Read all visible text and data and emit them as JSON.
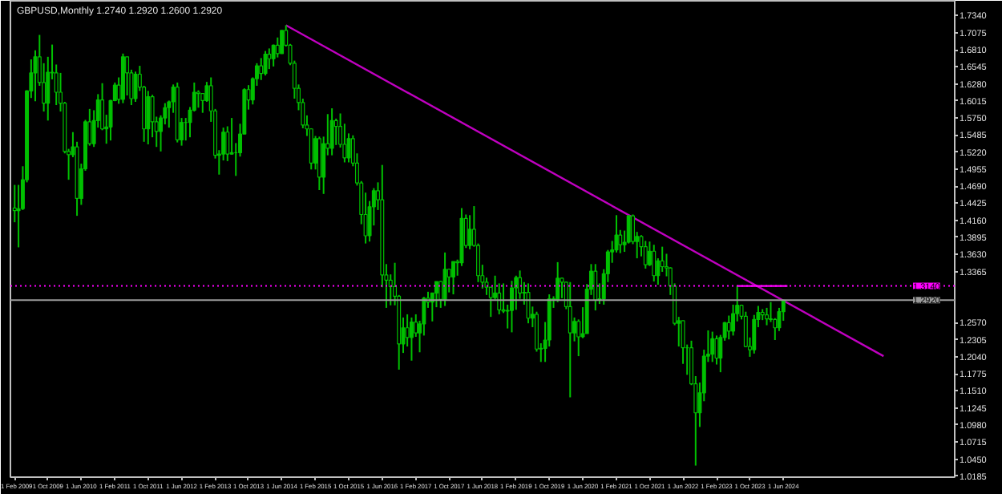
{
  "chart_data": {
    "type": "candlestick",
    "title": "GBPUSD,Monthly 1.2740 1.2920 1.2600 1.2920",
    "x": [
      "2009-02",
      "2009-03",
      "2009-04",
      "2009-05",
      "2009-06",
      "2009-07",
      "2009-08",
      "2009-09",
      "2009-10",
      "2009-11",
      "2009-12",
      "2010-01",
      "2010-02",
      "2010-03",
      "2010-04",
      "2010-05",
      "2010-06",
      "2010-07",
      "2010-08",
      "2010-09",
      "2010-10",
      "2010-11",
      "2010-12",
      "2011-01",
      "2011-02",
      "2011-03",
      "2011-04",
      "2011-05",
      "2011-06",
      "2011-07",
      "2011-08",
      "2011-09",
      "2011-10",
      "2011-11",
      "2011-12",
      "2012-01",
      "2012-02",
      "2012-03",
      "2012-04",
      "2012-05",
      "2012-06",
      "2012-07",
      "2012-08",
      "2012-09",
      "2012-10",
      "2012-11",
      "2012-12",
      "2013-01",
      "2013-02",
      "2013-03",
      "2013-04",
      "2013-05",
      "2013-06",
      "2013-07",
      "2013-08",
      "2013-09",
      "2013-10",
      "2013-11",
      "2013-12",
      "2014-01",
      "2014-02",
      "2014-03",
      "2014-04",
      "2014-05",
      "2014-06",
      "2014-07",
      "2014-08",
      "2014-09",
      "2014-10",
      "2014-11",
      "2014-12",
      "2015-01",
      "2015-02",
      "2015-03",
      "2015-04",
      "2015-05",
      "2015-06",
      "2015-07",
      "2015-08",
      "2015-09",
      "2015-10",
      "2015-11",
      "2015-12",
      "2016-01",
      "2016-02",
      "2016-03",
      "2016-04",
      "2016-05",
      "2016-06",
      "2016-07",
      "2016-08",
      "2016-09",
      "2016-10",
      "2016-11",
      "2016-12",
      "2017-01",
      "2017-02",
      "2017-03",
      "2017-04",
      "2017-05",
      "2017-06",
      "2017-07",
      "2017-08",
      "2017-09",
      "2017-10",
      "2017-11",
      "2017-12",
      "2018-01",
      "2018-02",
      "2018-03",
      "2018-04",
      "2018-05",
      "2018-06",
      "2018-07",
      "2018-08",
      "2018-09",
      "2018-10",
      "2018-11",
      "2018-12",
      "2019-01",
      "2019-02",
      "2019-03",
      "2019-04",
      "2019-05",
      "2019-06",
      "2019-07",
      "2019-08",
      "2019-09",
      "2019-10",
      "2019-11",
      "2019-12",
      "2020-01",
      "2020-02",
      "2020-03",
      "2020-04",
      "2020-05",
      "2020-06",
      "2020-07",
      "2020-08",
      "2020-09",
      "2020-10",
      "2020-11",
      "2020-12",
      "2021-01",
      "2021-02",
      "2021-03",
      "2021-04",
      "2021-05",
      "2021-06",
      "2021-07",
      "2021-08",
      "2021-09",
      "2021-10",
      "2021-11",
      "2021-12",
      "2022-01",
      "2022-02",
      "2022-03",
      "2022-04",
      "2022-05",
      "2022-06",
      "2022-07",
      "2022-08",
      "2022-09",
      "2022-10",
      "2022-11",
      "2022-12",
      "2023-01",
      "2023-02",
      "2023-03",
      "2023-04",
      "2023-05",
      "2023-06",
      "2023-07",
      "2023-08",
      "2023-09",
      "2023-10",
      "2023-11",
      "2023-12",
      "2024-01",
      "2024-02",
      "2024-03",
      "2024-04",
      "2024-05",
      "2024-06"
    ],
    "ohlc": [
      [
        1.435,
        1.471,
        1.413,
        1.431
      ],
      [
        1.431,
        1.471,
        1.374,
        1.434
      ],
      [
        1.434,
        1.5,
        1.432,
        1.479
      ],
      [
        1.479,
        1.618,
        1.475,
        1.617
      ],
      [
        1.617,
        1.666,
        1.606,
        1.645
      ],
      [
        1.645,
        1.68,
        1.601,
        1.67
      ],
      [
        1.67,
        1.704,
        1.625,
        1.63
      ],
      [
        1.63,
        1.66,
        1.585,
        1.598
      ],
      [
        1.598,
        1.67,
        1.571,
        1.646
      ],
      [
        1.646,
        1.689,
        1.635,
        1.645
      ],
      [
        1.645,
        1.658,
        1.595,
        1.615
      ],
      [
        1.615,
        1.645,
        1.585,
        1.598
      ],
      [
        1.598,
        1.6,
        1.52,
        1.523
      ],
      [
        1.523,
        1.527,
        1.479,
        1.518
      ],
      [
        1.518,
        1.553,
        1.514,
        1.53
      ],
      [
        1.53,
        1.538,
        1.423,
        1.45
      ],
      [
        1.45,
        1.504,
        1.44,
        1.496
      ],
      [
        1.496,
        1.572,
        1.493,
        1.569
      ],
      [
        1.569,
        1.589,
        1.532,
        1.535
      ],
      [
        1.535,
        1.587,
        1.53,
        1.571
      ],
      [
        1.571,
        1.612,
        1.56,
        1.603
      ],
      [
        1.603,
        1.629,
        1.556,
        1.558
      ],
      [
        1.558,
        1.58,
        1.535,
        1.561
      ],
      [
        1.561,
        1.603,
        1.54,
        1.602
      ],
      [
        1.602,
        1.63,
        1.601,
        1.626
      ],
      [
        1.626,
        1.638,
        1.597,
        1.604
      ],
      [
        1.604,
        1.675,
        1.598,
        1.67
      ],
      [
        1.67,
        1.67,
        1.61,
        1.645
      ],
      [
        1.645,
        1.65,
        1.595,
        1.605
      ],
      [
        1.605,
        1.647,
        1.6,
        1.643
      ],
      [
        1.643,
        1.656,
        1.617,
        1.623
      ],
      [
        1.623,
        1.625,
        1.538,
        1.558
      ],
      [
        1.558,
        1.617,
        1.534,
        1.608
      ],
      [
        1.608,
        1.611,
        1.545,
        1.569
      ],
      [
        1.569,
        1.577,
        1.53,
        1.554
      ],
      [
        1.554,
        1.579,
        1.523,
        1.575
      ],
      [
        1.575,
        1.598,
        1.565,
        1.591
      ],
      [
        1.591,
        1.602,
        1.56,
        1.6
      ],
      [
        1.6,
        1.627,
        1.583,
        1.623
      ],
      [
        1.623,
        1.63,
        1.537,
        1.541
      ],
      [
        1.541,
        1.575,
        1.532,
        1.568
      ],
      [
        1.568,
        1.575,
        1.54,
        1.568
      ],
      [
        1.568,
        1.592,
        1.545,
        1.587
      ],
      [
        1.587,
        1.63,
        1.585,
        1.615
      ],
      [
        1.615,
        1.618,
        1.591,
        1.613
      ],
      [
        1.613,
        1.613,
        1.583,
        1.602
      ],
      [
        1.602,
        1.631,
        1.6,
        1.625
      ],
      [
        1.625,
        1.638,
        1.569,
        1.586
      ],
      [
        1.586,
        1.589,
        1.512,
        1.517
      ],
      [
        1.517,
        1.525,
        1.487,
        1.519
      ],
      [
        1.519,
        1.56,
        1.509,
        1.553
      ],
      [
        1.553,
        1.562,
        1.508,
        1.519
      ],
      [
        1.519,
        1.575,
        1.518,
        1.521
      ],
      [
        1.521,
        1.536,
        1.485,
        1.521
      ],
      [
        1.521,
        1.566,
        1.515,
        1.55
      ],
      [
        1.55,
        1.621,
        1.55,
        1.619
      ],
      [
        1.619,
        1.626,
        1.588,
        1.603
      ],
      [
        1.603,
        1.638,
        1.596,
        1.636
      ],
      [
        1.636,
        1.66,
        1.625,
        1.656
      ],
      [
        1.656,
        1.668,
        1.634,
        1.644
      ],
      [
        1.644,
        1.679,
        1.641,
        1.674
      ],
      [
        1.674,
        1.683,
        1.651,
        1.667
      ],
      [
        1.667,
        1.689,
        1.655,
        1.688
      ],
      [
        1.688,
        1.7,
        1.669,
        1.675
      ],
      [
        1.675,
        1.711,
        1.675,
        1.711
      ],
      [
        1.711,
        1.719,
        1.686,
        1.688
      ],
      [
        1.688,
        1.69,
        1.657,
        1.66
      ],
      [
        1.66,
        1.664,
        1.605,
        1.621
      ],
      [
        1.621,
        1.627,
        1.587,
        1.599
      ],
      [
        1.599,
        1.605,
        1.559,
        1.564
      ],
      [
        1.564,
        1.579,
        1.547,
        1.558
      ],
      [
        1.558,
        1.559,
        1.495,
        1.505
      ],
      [
        1.505,
        1.547,
        1.495,
        1.543
      ],
      [
        1.543,
        1.546,
        1.463,
        1.483
      ],
      [
        1.483,
        1.546,
        1.457,
        1.535
      ],
      [
        1.535,
        1.581,
        1.517,
        1.528
      ],
      [
        1.528,
        1.59,
        1.517,
        1.571
      ],
      [
        1.571,
        1.574,
        1.533,
        1.562
      ],
      [
        1.562,
        1.582,
        1.529,
        1.534
      ],
      [
        1.534,
        1.566,
        1.506,
        1.513
      ],
      [
        1.513,
        1.551,
        1.506,
        1.543
      ],
      [
        1.543,
        1.548,
        1.5,
        1.505
      ],
      [
        1.505,
        1.52,
        1.47,
        1.474
      ],
      [
        1.474,
        1.477,
        1.41,
        1.425
      ],
      [
        1.425,
        1.459,
        1.38,
        1.392
      ],
      [
        1.392,
        1.446,
        1.383,
        1.437
      ],
      [
        1.437,
        1.466,
        1.408,
        1.462
      ],
      [
        1.462,
        1.475,
        1.432,
        1.448
      ],
      [
        1.448,
        1.502,
        1.312,
        1.331
      ],
      [
        1.331,
        1.348,
        1.28,
        1.323
      ],
      [
        1.323,
        1.332,
        1.284,
        1.313
      ],
      [
        1.313,
        1.35,
        1.284,
        1.298
      ],
      [
        1.298,
        1.3,
        1.184,
        1.224
      ],
      [
        1.224,
        1.265,
        1.21,
        1.249
      ],
      [
        1.249,
        1.27,
        1.22,
        1.234
      ],
      [
        1.234,
        1.265,
        1.198,
        1.258
      ],
      [
        1.258,
        1.27,
        1.235,
        1.241
      ],
      [
        1.241,
        1.26,
        1.211,
        1.255
      ],
      [
        1.255,
        1.297,
        1.237,
        1.295
      ],
      [
        1.295,
        1.305,
        1.28,
        1.289
      ],
      [
        1.289,
        1.303,
        1.259,
        1.303
      ],
      [
        1.303,
        1.321,
        1.281,
        1.321
      ],
      [
        1.321,
        1.322,
        1.28,
        1.293
      ],
      [
        1.293,
        1.366,
        1.283,
        1.34
      ],
      [
        1.34,
        1.341,
        1.304,
        1.328
      ],
      [
        1.328,
        1.352,
        1.301,
        1.352
      ],
      [
        1.352,
        1.355,
        1.33,
        1.35
      ],
      [
        1.35,
        1.435,
        1.345,
        1.419
      ],
      [
        1.419,
        1.425,
        1.373,
        1.377
      ],
      [
        1.377,
        1.424,
        1.371,
        1.402
      ],
      [
        1.402,
        1.438,
        1.375,
        1.377
      ],
      [
        1.377,
        1.38,
        1.32,
        1.33
      ],
      [
        1.33,
        1.347,
        1.31,
        1.32
      ],
      [
        1.32,
        1.327,
        1.3,
        1.312
      ],
      [
        1.312,
        1.312,
        1.266,
        1.296
      ],
      [
        1.296,
        1.33,
        1.293,
        1.303
      ],
      [
        1.303,
        1.318,
        1.27,
        1.277
      ],
      [
        1.277,
        1.318,
        1.272,
        1.275
      ],
      [
        1.275,
        1.285,
        1.248,
        1.276
      ],
      [
        1.276,
        1.322,
        1.242,
        1.311
      ],
      [
        1.311,
        1.33,
        1.277,
        1.327
      ],
      [
        1.327,
        1.338,
        1.294,
        1.303
      ],
      [
        1.303,
        1.32,
        1.285,
        1.304
      ],
      [
        1.304,
        1.318,
        1.256,
        1.264
      ],
      [
        1.264,
        1.282,
        1.25,
        1.27
      ],
      [
        1.27,
        1.274,
        1.212,
        1.216
      ],
      [
        1.216,
        1.225,
        1.196,
        1.217
      ],
      [
        1.217,
        1.258,
        1.196,
        1.23
      ],
      [
        1.23,
        1.301,
        1.22,
        1.294
      ],
      [
        1.294,
        1.298,
        1.28,
        1.293
      ],
      [
        1.293,
        1.351,
        1.289,
        1.326
      ],
      [
        1.326,
        1.327,
        1.295,
        1.32
      ],
      [
        1.32,
        1.321,
        1.278,
        1.282
      ],
      [
        1.282,
        1.32,
        1.141,
        1.241
      ],
      [
        1.241,
        1.265,
        1.228,
        1.259
      ],
      [
        1.259,
        1.262,
        1.205,
        1.235
      ],
      [
        1.235,
        1.281,
        1.233,
        1.24
      ],
      [
        1.24,
        1.317,
        1.24,
        1.309
      ],
      [
        1.309,
        1.348,
        1.3,
        1.337
      ],
      [
        1.337,
        1.348,
        1.276,
        1.292
      ],
      [
        1.292,
        1.318,
        1.286,
        1.294
      ],
      [
        1.294,
        1.34,
        1.285,
        1.333
      ],
      [
        1.333,
        1.37,
        1.32,
        1.367
      ],
      [
        1.367,
        1.384,
        1.35,
        1.37
      ],
      [
        1.37,
        1.424,
        1.366,
        1.393
      ],
      [
        1.393,
        1.401,
        1.365,
        1.378
      ],
      [
        1.378,
        1.4,
        1.367,
        1.382
      ],
      [
        1.382,
        1.424,
        1.38,
        1.423
      ],
      [
        1.423,
        1.425,
        1.379,
        1.383
      ],
      [
        1.383,
        1.398,
        1.357,
        1.391
      ],
      [
        1.391,
        1.393,
        1.36,
        1.375
      ],
      [
        1.375,
        1.384,
        1.341,
        1.347
      ],
      [
        1.347,
        1.383,
        1.345,
        1.368
      ],
      [
        1.368,
        1.378,
        1.321,
        1.33
      ],
      [
        1.33,
        1.357,
        1.316,
        1.353
      ],
      [
        1.353,
        1.375,
        1.336,
        1.344
      ],
      [
        1.344,
        1.364,
        1.329,
        1.342
      ],
      [
        1.342,
        1.343,
        1.3,
        1.314
      ],
      [
        1.314,
        1.318,
        1.253,
        1.256
      ],
      [
        1.256,
        1.266,
        1.22,
        1.26
      ],
      [
        1.26,
        1.26,
        1.193,
        1.218
      ],
      [
        1.218,
        1.223,
        1.176,
        1.218
      ],
      [
        1.218,
        1.229,
        1.16,
        1.162
      ],
      [
        1.162,
        1.174,
        1.035,
        1.117
      ],
      [
        1.117,
        1.164,
        1.095,
        1.148
      ],
      [
        1.148,
        1.215,
        1.135,
        1.205
      ],
      [
        1.205,
        1.245,
        1.196,
        1.208
      ],
      [
        1.208,
        1.243,
        1.196,
        1.232
      ],
      [
        1.232,
        1.237,
        1.192,
        1.202
      ],
      [
        1.202,
        1.238,
        1.18,
        1.234
      ],
      [
        1.234,
        1.258,
        1.229,
        1.257
      ],
      [
        1.257,
        1.268,
        1.231,
        1.244
      ],
      [
        1.244,
        1.285,
        1.237,
        1.271
      ],
      [
        1.271,
        1.314,
        1.259,
        1.284
      ],
      [
        1.284,
        1.285,
        1.262,
        1.267
      ],
      [
        1.267,
        1.274,
        1.219,
        1.22
      ],
      [
        1.22,
        1.234,
        1.204,
        1.215
      ],
      [
        1.215,
        1.269,
        1.209,
        1.262
      ],
      [
        1.262,
        1.283,
        1.25,
        1.273
      ],
      [
        1.273,
        1.278,
        1.261,
        1.269
      ],
      [
        1.269,
        1.28,
        1.253,
        1.263
      ],
      [
        1.263,
        1.289,
        1.258,
        1.262
      ],
      [
        1.262,
        1.264,
        1.23,
        1.249
      ],
      [
        1.249,
        1.28,
        1.244,
        1.274
      ],
      [
        1.274,
        1.292,
        1.26,
        1.292
      ]
    ],
    "color": "#00c000",
    "series": [
      {
        "type": "line",
        "x": [
          "2014-07",
          "2026-06"
        ],
        "values": [
          1.719,
          1.205
        ],
        "color": "#c000c0"
      },
      {
        "type": "line",
        "x": [
          "2023-07",
          "2024-07"
        ],
        "values": [
          1.314,
          1.314
        ],
        "color": "#ff00ff"
      }
    ],
    "ref_lines": [
      {
        "axis": "y",
        "value": 1.314,
        "label": "1.3140",
        "color": "#ff00ff",
        "line_style": "dotted"
      },
      {
        "axis": "y",
        "value": 1.292,
        "label": "1.2920",
        "color": "#9a9a9a",
        "line_style": "solid"
      }
    ],
    "xlim": [
      "2009-01-01",
      "2027-11-01"
    ],
    "xticks": [
      {
        "value": "2009-02-01",
        "label": "1 Feb 2009"
      },
      {
        "value": "2009-10-01",
        "label": "1 Oct 2009"
      },
      {
        "value": "2010-06-01",
        "label": "1 Jun 2010"
      },
      {
        "value": "2011-02-01",
        "label": "1 Feb 2011"
      },
      {
        "value": "2011-10-01",
        "label": "1 Oct 2011"
      },
      {
        "value": "2012-06-01",
        "label": "1 Jun 2012"
      },
      {
        "value": "2013-02-01",
        "label": "1 Feb 2013"
      },
      {
        "value": "2013-10-01",
        "label": "1 Oct 2013"
      },
      {
        "value": "2014-06-01",
        "label": "1 Jun 2014"
      },
      {
        "value": "2015-02-01",
        "label": "1 Feb 2015"
      },
      {
        "value": "2015-10-01",
        "label": "1 Oct 2015"
      },
      {
        "value": "2016-06-01",
        "label": "1 Jun 2016"
      },
      {
        "value": "2017-02-01",
        "label": "1 Feb 2017"
      },
      {
        "value": "2017-10-01",
        "label": "1 Oct 2017"
      },
      {
        "value": "2018-06-01",
        "label": "1 Jun 2018"
      },
      {
        "value": "2019-02-01",
        "label": "1 Feb 2019"
      },
      {
        "value": "2019-10-01",
        "label": "1 Oct 2019"
      },
      {
        "value": "2020-06-01",
        "label": "1 Jun 2020"
      },
      {
        "value": "2021-02-01",
        "label": "1 Feb 2021"
      },
      {
        "value": "2021-10-01",
        "label": "1 Oct 2021"
      },
      {
        "value": "2022-06-01",
        "label": "1 Jun 2022"
      },
      {
        "value": "2023-02-01",
        "label": "1 Feb 2023"
      },
      {
        "value": "2023-10-01",
        "label": "1 Oct 2023"
      },
      {
        "value": "2024-06-01",
        "label": "1 Jun 2024"
      }
    ],
    "ylim": [
      1.017,
      1.757
    ],
    "yticks": [
      {
        "value": 1.0185,
        "label": "1.0185"
      },
      {
        "value": 1.045,
        "label": "1.0450"
      },
      {
        "value": 1.0715,
        "label": "1.0715"
      },
      {
        "value": 1.098,
        "label": "1.0980"
      },
      {
        "value": 1.1245,
        "label": "1.1245"
      },
      {
        "value": 1.151,
        "label": "1.1510"
      },
      {
        "value": 1.1775,
        "label": "1.1775"
      },
      {
        "value": 1.204,
        "label": "1.2040"
      },
      {
        "value": 1.2305,
        "label": "1.2305"
      },
      {
        "value": 1.257,
        "label": "1.2570"
      },
      {
        "value": 1.3365,
        "label": "1.3365"
      },
      {
        "value": 1.363,
        "label": "1.3630"
      },
      {
        "value": 1.3895,
        "label": "1.3895"
      },
      {
        "value": 1.416,
        "label": "1.4160"
      },
      {
        "value": 1.4425,
        "label": "1.4425"
      },
      {
        "value": 1.469,
        "label": "1.4690"
      },
      {
        "value": 1.4955,
        "label": "1.4955"
      },
      {
        "value": 1.522,
        "label": "1.5220"
      },
      {
        "value": 1.5485,
        "label": "1.5485"
      },
      {
        "value": 1.575,
        "label": "1.5750"
      },
      {
        "value": 1.6015,
        "label": "1.6015"
      },
      {
        "value": 1.628,
        "label": "1.6280"
      },
      {
        "value": 1.6545,
        "label": "1.6545"
      },
      {
        "value": 1.681,
        "label": "1.6810"
      },
      {
        "value": 1.7075,
        "label": "1.7075"
      },
      {
        "value": 1.734,
        "label": "1.7340"
      }
    ],
    "grid": false
  }
}
